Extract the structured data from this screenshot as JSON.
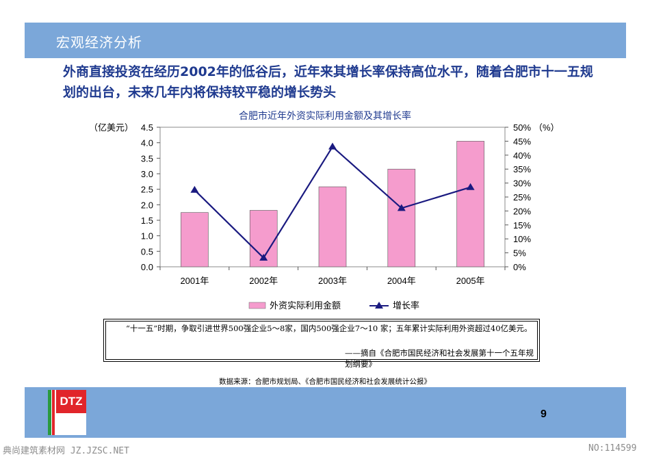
{
  "header": {
    "title": "宏观经济分析"
  },
  "headline": "外商直接投资在经历2002年的低谷后，近年来其增长率保持高位水平，随着合肥市十一五规划的出台，未来几年内将保持较平稳的增长势头",
  "chart_data": {
    "type": "bar",
    "title": "合肥市近年外资实际利用金额及其增长率",
    "categories": [
      "2001年",
      "2002年",
      "2003年",
      "2004年",
      "2005年"
    ],
    "y_left_unit": "（亿美元）",
    "y_right_unit": "（%）",
    "ylim_left": [
      0,
      4.5
    ],
    "ylim_right": [
      0,
      50
    ],
    "y_left_ticks": [
      "0.0",
      "0.5",
      "1.0",
      "1.5",
      "2.0",
      "2.5",
      "3.0",
      "3.5",
      "4.0",
      "4.5"
    ],
    "y_right_ticks": [
      "0%",
      "5%",
      "10%",
      "15%",
      "20%",
      "25%",
      "30%",
      "35%",
      "40%",
      "45%",
      "50%"
    ],
    "grid": false,
    "legend_position": "bottom",
    "series": [
      {
        "name": "外资实际利用金额",
        "type": "bar",
        "axis": "left",
        "color": "#f59ccd",
        "values": [
          1.75,
          1.82,
          2.58,
          3.15,
          4.05
        ]
      },
      {
        "name": "增长率",
        "type": "line",
        "axis": "right",
        "color": "#1a1a80",
        "marker": "triangle",
        "values": [
          27.5,
          3.2,
          43.0,
          21.0,
          28.5
        ]
      }
    ]
  },
  "quote": {
    "text": "“十一五”时期，争取引进世界500强企业5～8家，国内500强企业7～10 家；五年累计实际利用外资超过40亿美元。",
    "source": "——摘自《合肥市国民经济和社会发展第十一个五年规划纲要》"
  },
  "data_source": "数据来源：合肥市规划局、《合肥市国民经济和社会发展统计公报》",
  "footer": {
    "logo_text": "DTZ",
    "page_number": "9"
  },
  "watermark": {
    "left": "典尚建筑素材网 JZ.JZSC.NET",
    "right": "NO:114599"
  }
}
